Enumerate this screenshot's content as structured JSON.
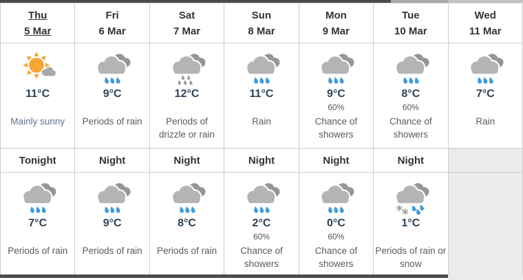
{
  "forecast_table": {
    "columns": [
      {
        "day_label": "Thu",
        "date_label": "5 Mar",
        "linked": true,
        "day": {
          "icon": "mainly-sunny-icon",
          "temperature": "11°C",
          "pop": "",
          "condition": "Mainly sunny",
          "tone": "blue"
        },
        "night": {
          "label": "Tonight",
          "icon": "rain-icon",
          "temperature": "7°C",
          "pop": "",
          "condition": "Periods of rain",
          "tone": "normal"
        }
      },
      {
        "day_label": "Fri",
        "date_label": "6 Mar",
        "linked": false,
        "day": {
          "icon": "rain-icon",
          "temperature": "9°C",
          "pop": "",
          "condition": "Periods of rain",
          "tone": "normal"
        },
        "night": {
          "label": "Night",
          "icon": "rain-icon",
          "temperature": "9°C",
          "pop": "",
          "condition": "Periods of rain",
          "tone": "normal"
        }
      },
      {
        "day_label": "Sat",
        "date_label": "7 Mar",
        "linked": false,
        "day": {
          "icon": "drizzle-icon",
          "temperature": "12°C",
          "pop": "",
          "condition": "Periods of drizzle or rain",
          "tone": "normal"
        },
        "night": {
          "label": "Night",
          "icon": "rain-icon",
          "temperature": "8°C",
          "pop": "",
          "condition": "Periods of rain",
          "tone": "normal"
        }
      },
      {
        "day_label": "Sun",
        "date_label": "8 Mar",
        "linked": false,
        "day": {
          "icon": "rain-icon",
          "temperature": "11°C",
          "pop": "",
          "condition": "Rain",
          "tone": "normal"
        },
        "night": {
          "label": "Night",
          "icon": "rain-icon",
          "temperature": "2°C",
          "pop": "60%",
          "condition": "Chance of showers",
          "tone": "normal"
        }
      },
      {
        "day_label": "Mon",
        "date_label": "9 Mar",
        "linked": false,
        "day": {
          "icon": "rain-icon",
          "temperature": "9°C",
          "pop": "60%",
          "condition": "Chance of showers",
          "tone": "normal"
        },
        "night": {
          "label": "Night",
          "icon": "rain-icon",
          "temperature": "0°C",
          "pop": "60%",
          "condition": "Chance of showers",
          "tone": "normal"
        }
      },
      {
        "day_label": "Tue",
        "date_label": "10 Mar",
        "linked": false,
        "day": {
          "icon": "rain-icon",
          "temperature": "8°C",
          "pop": "60%",
          "condition": "Chance of showers",
          "tone": "normal"
        },
        "night": {
          "label": "Night",
          "icon": "rain-snow-icon",
          "temperature": "1°C",
          "pop": "",
          "condition": "Periods of rain or snow",
          "tone": "normal"
        }
      },
      {
        "day_label": "Wed",
        "date_label": "11 Mar",
        "linked": false,
        "day": {
          "icon": "rain-icon",
          "temperature": "7°C",
          "pop": "",
          "condition": "Rain",
          "tone": "normal"
        },
        "night": null
      }
    ],
    "colors": {
      "top_bar_dark": "#4b4b4b",
      "top_bar_light": "#c4c4c4",
      "border": "#cccccc",
      "disabled_cell_bg": "#ebebeb",
      "header_text": "#333333",
      "temperature_text": "#2b4257",
      "condition_text": "#5a5a5a",
      "sunny_condition_text": "#5d7390",
      "pop_text": "#555555",
      "sun": "#f5a733",
      "cloud_front": "#b4b4b4",
      "cloud_back": "#969696",
      "small_cloud": "#a8a8a8",
      "raindrop": "#3f9bdc",
      "drizzle_drop": "#9c9c9c",
      "snowflake": "#9a9a9a"
    }
  }
}
